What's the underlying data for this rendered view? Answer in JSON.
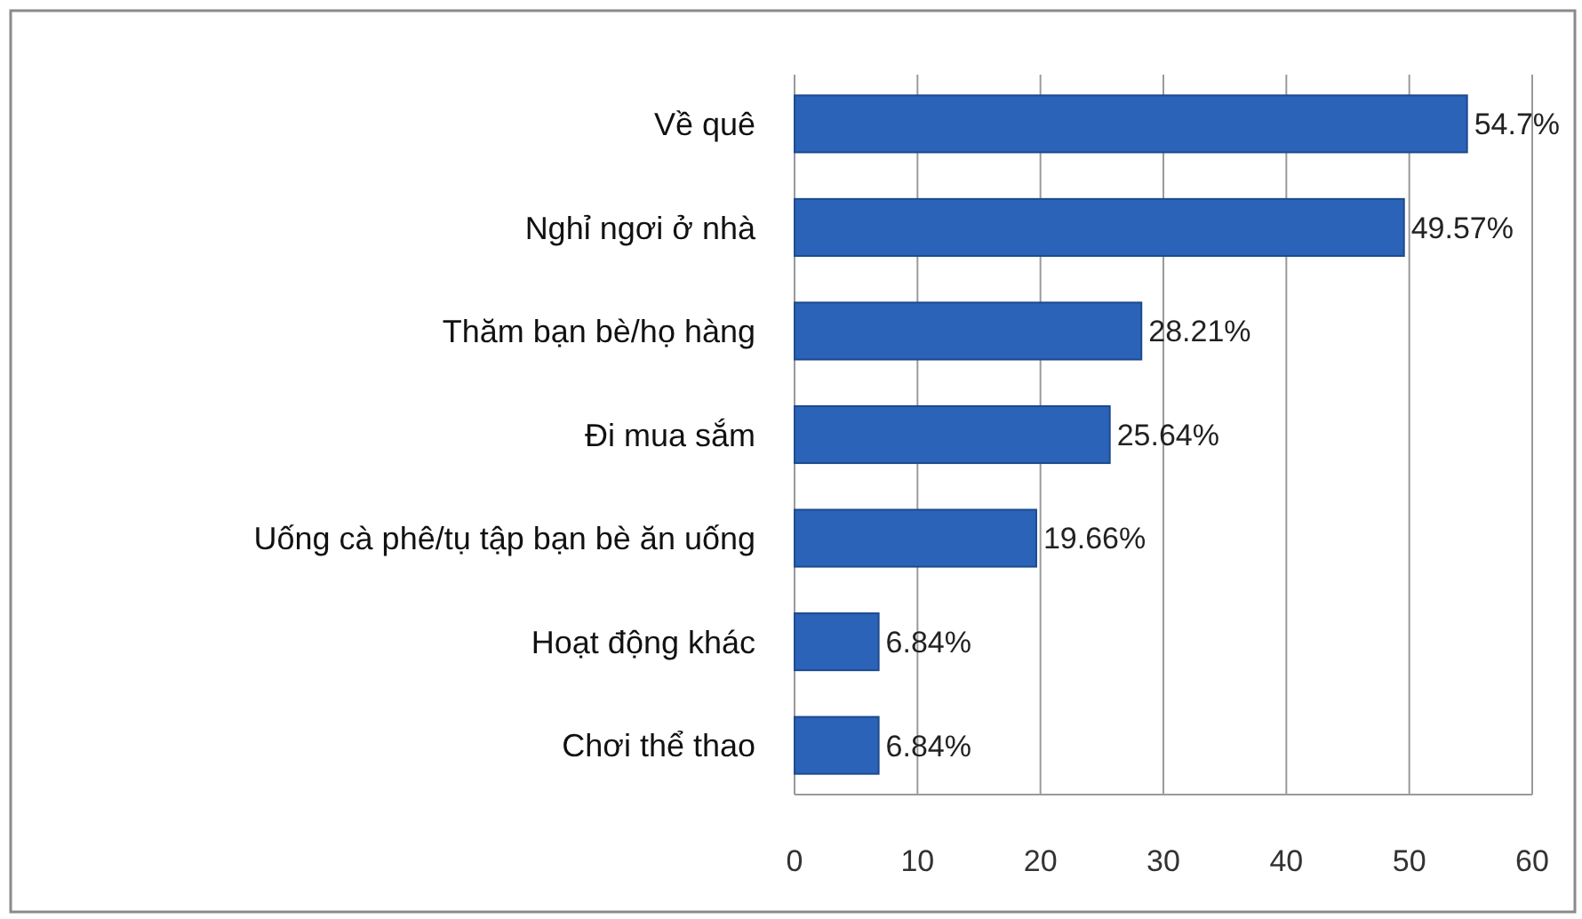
{
  "chart_data": {
    "type": "bar",
    "orientation": "horizontal",
    "categories": [
      "Về quê",
      "Nghỉ ngơi ở nhà",
      "Thăm bạn bè/họ hàng",
      "Đi mua sắm",
      "Uống cà phê/tụ tập bạn bè ăn uống",
      "Hoạt động khác",
      "Chơi thể thao"
    ],
    "values": [
      54.7,
      49.57,
      28.21,
      25.64,
      19.66,
      6.84,
      6.84
    ],
    "value_labels": [
      "54.7%",
      "49.57%",
      "28.21%",
      "25.64%",
      "19.66%",
      "6.84%",
      "6.84%"
    ],
    "color": "#2b63b8",
    "xlim": [
      0,
      60
    ],
    "xticks": [
      0,
      10,
      20,
      30,
      40,
      50,
      60
    ],
    "grid": "x"
  }
}
